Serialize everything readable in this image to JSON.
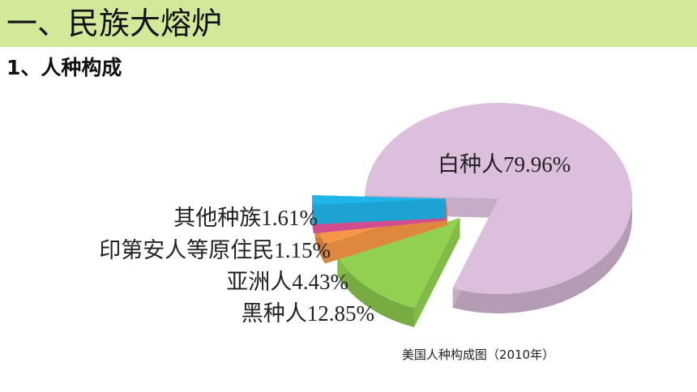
{
  "header": {
    "title": "一、民族大熔炉"
  },
  "subtitle": "1、人种构成",
  "chart_data": {
    "type": "pie",
    "title": "美国人种构成图（2010年）",
    "categories": [
      "白种人",
      "黑种人",
      "亚洲人",
      "印第安人等原住民",
      "其他种族"
    ],
    "values": [
      79.96,
      12.85,
      4.43,
      1.15,
      1.61
    ],
    "value_labels": [
      "79.96%",
      "12.85%",
      "4.43%",
      "1.15%",
      "1.61%"
    ],
    "colors": [
      "#dcbfdc",
      "#92d050",
      "#f79646",
      "#e8559f",
      "#1fb5e8"
    ]
  }
}
